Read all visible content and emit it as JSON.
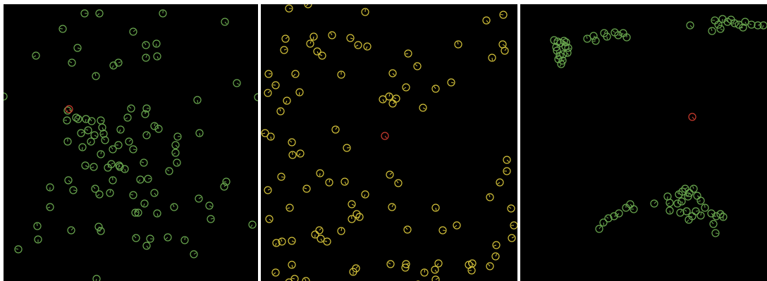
{
  "panels": [
    {
      "name": "panel-1",
      "color": "#6aa84f",
      "agents": [
        [
          115,
          13
        ],
        [
          136,
          13
        ],
        [
          226,
          13
        ],
        [
          314,
          25
        ],
        [
          84,
          35
        ],
        [
          184,
          39
        ],
        [
          217,
          56
        ],
        [
          202,
          58
        ],
        [
          105,
          62
        ],
        [
          46,
          73
        ],
        [
          202,
          76
        ],
        [
          218,
          74
        ],
        [
          97,
          83
        ],
        [
          163,
          83
        ],
        [
          156,
          87
        ],
        [
          131,
          102
        ],
        [
          331,
          112
        ],
        [
          0,
          131
        ],
        [
          361,
          132
        ],
        [
          275,
          136
        ],
        [
          181,
          148
        ],
        [
          203,
          148
        ],
        [
          91,
          151
        ],
        [
          201,
          156
        ],
        [
          103,
          161
        ],
        [
          90,
          165
        ],
        [
          106,
          163
        ],
        [
          117,
          163
        ],
        [
          125,
          166
        ],
        [
          138,
          165
        ],
        [
          176,
          161
        ],
        [
          214,
          173
        ],
        [
          140,
          175
        ],
        [
          120,
          179
        ],
        [
          110,
          183
        ],
        [
          166,
          178
        ],
        [
          220,
          177
        ],
        [
          129,
          186
        ],
        [
          142,
          184
        ],
        [
          203,
          186
        ],
        [
          278,
          183
        ],
        [
          144,
          193
        ],
        [
          247,
          188
        ],
        [
          124,
          195
        ],
        [
          91,
          195
        ],
        [
          244,
          200
        ],
        [
          163,
          200
        ],
        [
          178,
          195
        ],
        [
          112,
          203
        ],
        [
          155,
          206
        ],
        [
          184,
          206
        ],
        [
          244,
          211
        ],
        [
          138,
          213
        ],
        [
          246,
          225
        ],
        [
          199,
          225
        ],
        [
          153,
          227
        ],
        [
          164,
          229
        ],
        [
          165,
          231
        ],
        [
          116,
          229
        ],
        [
          128,
          231
        ],
        [
          148,
          232
        ],
        [
          172,
          234
        ],
        [
          235,
          237
        ],
        [
          205,
          248
        ],
        [
          194,
          249
        ],
        [
          155,
          250
        ],
        [
          92,
          250
        ],
        [
          316,
          252
        ],
        [
          313,
          259
        ],
        [
          66,
          260
        ],
        [
          130,
          262
        ],
        [
          99,
          264
        ],
        [
          136,
          270
        ],
        [
          151,
          268
        ],
        [
          214,
          268
        ],
        [
          184,
          271
        ],
        [
          277,
          276
        ],
        [
          200,
          283
        ],
        [
          242,
          288
        ],
        [
          292,
          286
        ],
        [
          66,
          288
        ],
        [
          187,
          296
        ],
        [
          218,
          297
        ],
        [
          191,
          296
        ],
        [
          294,
          305
        ],
        [
          353,
          313
        ],
        [
          48,
          315
        ],
        [
          135,
          316
        ],
        [
          138,
          322
        ],
        [
          96,
          321
        ],
        [
          49,
          334
        ],
        [
          188,
          332
        ],
        [
          208,
          333
        ],
        [
          233,
          331
        ],
        [
          257,
          335
        ],
        [
          203,
          343
        ],
        [
          21,
          348
        ],
        [
          270,
          355
        ],
        [
          132,
          390
        ]
      ],
      "special": [
        [
          93,
          149
        ]
      ]
    },
    {
      "name": "panel-2",
      "color": "#d4c23a",
      "agents": [
        [
          40,
          6
        ],
        [
          67,
          0
        ],
        [
          148,
          11
        ],
        [
          320,
          23
        ],
        [
          344,
          15
        ],
        [
          35,
          49
        ],
        [
          75,
          46
        ],
        [
          101,
          44
        ],
        [
          127,
          48
        ],
        [
          138,
          58
        ],
        [
          70,
          56
        ],
        [
          80,
          67
        ],
        [
          87,
          73
        ],
        [
          33,
          65
        ],
        [
          151,
          60
        ],
        [
          280,
          57
        ],
        [
          343,
          57
        ],
        [
          209,
          70
        ],
        [
          346,
          66
        ],
        [
          328,
          76
        ],
        [
          222,
          88
        ],
        [
          11,
          99
        ],
        [
          49,
          99
        ],
        [
          114,
          100
        ],
        [
          187,
          98
        ],
        [
          21,
          115
        ],
        [
          10,
          126
        ],
        [
          55,
          125
        ],
        [
          248,
          120
        ],
        [
          270,
          111
        ],
        [
          206,
          118
        ],
        [
          182,
          131
        ],
        [
          173,
          135
        ],
        [
          192,
          134
        ],
        [
          187,
          141
        ],
        [
          37,
          137
        ],
        [
          28,
          152
        ],
        [
          230,
          147
        ],
        [
          6,
          183
        ],
        [
          106,
          178
        ],
        [
          14,
          188
        ],
        [
          44,
          196
        ],
        [
          122,
          204
        ],
        [
          56,
          212
        ],
        [
          45,
          214
        ],
        [
          349,
          221
        ],
        [
          349,
          237
        ],
        [
          183,
          242
        ],
        [
          84,
          240
        ],
        [
          195,
          254
        ],
        [
          29,
          245
        ],
        [
          339,
          253
        ],
        [
          97,
          253
        ],
        [
          119,
          252
        ],
        [
          65,
          262
        ],
        [
          10,
          264
        ],
        [
          148,
          270
        ],
        [
          325,
          274
        ],
        [
          129,
          284
        ],
        [
          41,
          289
        ],
        [
          186,
          288
        ],
        [
          248,
          289
        ],
        [
          355,
          290
        ],
        [
          136,
          298
        ],
        [
          140,
          302
        ],
        [
          129,
          305
        ],
        [
          12,
          305
        ],
        [
          359,
          314
        ],
        [
          83,
          321
        ],
        [
          77,
          327
        ],
        [
          208,
          320
        ],
        [
          258,
          321
        ],
        [
          278,
          314
        ],
        [
          114,
          322
        ],
        [
          85,
          333
        ],
        [
          94,
          337
        ],
        [
          356,
          332
        ],
        [
          22,
          339
        ],
        [
          30,
          337
        ],
        [
          44,
          336
        ],
        [
          334,
          342
        ],
        [
          333,
          358
        ],
        [
          44,
          370
        ],
        [
          184,
          369
        ],
        [
          206,
          369
        ],
        [
          252,
          368
        ],
        [
          295,
          370
        ],
        [
          300,
          368
        ],
        [
          299,
          378
        ],
        [
          135,
          375
        ],
        [
          131,
          380
        ],
        [
          325,
          372
        ],
        [
          205,
          374
        ],
        [
          21,
          381
        ],
        [
          232,
          381
        ],
        [
          247,
          377
        ],
        [
          48,
          390
        ],
        [
          248,
          391
        ],
        [
          223,
          398
        ],
        [
          64,
          393
        ],
        [
          40,
          395
        ]
      ],
      "special": [
        [
          176,
          187
        ]
      ]
    },
    {
      "name": "panel-3",
      "color": "#6aa84f",
      "agents": [
        [
          48,
          51
        ],
        [
          53,
          53
        ],
        [
          57,
          55
        ],
        [
          62,
          52
        ],
        [
          65,
          54
        ],
        [
          51,
          61
        ],
        [
          52,
          66
        ],
        [
          64,
          60
        ],
        [
          68,
          62
        ],
        [
          56,
          73
        ],
        [
          61,
          71
        ],
        [
          67,
          69
        ],
        [
          54,
          78
        ],
        [
          60,
          80
        ],
        [
          58,
          85
        ],
        [
          95,
          49
        ],
        [
          104,
          45
        ],
        [
          107,
          52
        ],
        [
          119,
          41
        ],
        [
          123,
          46
        ],
        [
          134,
          40
        ],
        [
          139,
          44
        ],
        [
          146,
          41
        ],
        [
          151,
          47
        ],
        [
          241,
          30
        ],
        [
          276,
          23
        ],
        [
          281,
          29
        ],
        [
          287,
          21
        ],
        [
          294,
          25
        ],
        [
          299,
          22
        ],
        [
          304,
          27
        ],
        [
          310,
          29
        ],
        [
          319,
          25
        ],
        [
          328,
          29
        ],
        [
          337,
          30
        ],
        [
          345,
          30
        ],
        [
          272,
          38
        ],
        [
          284,
          35
        ],
        [
          316,
          33
        ],
        [
          112,
          319
        ],
        [
          118,
          310
        ],
        [
          125,
          304
        ],
        [
          133,
          301
        ],
        [
          140,
          297
        ],
        [
          150,
          289
        ],
        [
          156,
          284
        ],
        [
          161,
          291
        ],
        [
          190,
          283
        ],
        [
          209,
          273
        ],
        [
          225,
          270
        ],
        [
          230,
          266
        ],
        [
          212,
          282
        ],
        [
          223,
          283
        ],
        [
          229,
          280
        ],
        [
          238,
          273
        ],
        [
          234,
          262
        ],
        [
          240,
          268
        ],
        [
          246,
          262
        ],
        [
          251,
          272
        ],
        [
          256,
          279
        ],
        [
          227,
          296
        ],
        [
          212,
          293
        ],
        [
          236,
          294
        ],
        [
          249,
          294
        ],
        [
          239,
          306
        ],
        [
          262,
          289
        ],
        [
          271,
          297
        ],
        [
          278,
          301
        ],
        [
          284,
          298
        ],
        [
          288,
          302
        ],
        [
          274,
          312
        ],
        [
          277,
          325
        ],
        [
          244,
          301
        ],
        [
          256,
          300
        ]
      ],
      "special": [
        [
          244,
          160
        ]
      ]
    }
  ]
}
